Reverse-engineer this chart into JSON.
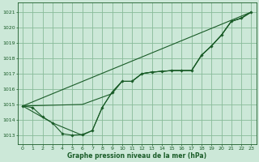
{
  "title": "Graphe pression niveau de la mer (hPa)",
  "background_color": "#cce8d8",
  "grid_color": "#88bb99",
  "line_color": "#1a5c28",
  "text_color": "#1a5c28",
  "xlim": [
    -0.5,
    23.5
  ],
  "ylim": [
    1012.4,
    1021.6
  ],
  "yticks": [
    1013,
    1014,
    1015,
    1016,
    1017,
    1018,
    1019,
    1020,
    1021
  ],
  "xticks": [
    0,
    1,
    2,
    3,
    4,
    5,
    6,
    7,
    8,
    9,
    10,
    11,
    12,
    13,
    14,
    15,
    16,
    17,
    18,
    19,
    20,
    21,
    22,
    23
  ],
  "line1_x": [
    0,
    1,
    2,
    3,
    4,
    5,
    6,
    7,
    8,
    9,
    10,
    11,
    12,
    13,
    14,
    15,
    16,
    17,
    18,
    19,
    20,
    21,
    22,
    23
  ],
  "line1_y": [
    1014.9,
    1014.8,
    1014.2,
    1013.8,
    1013.1,
    1013.0,
    1013.05,
    1013.3,
    1014.8,
    1015.8,
    1016.5,
    1016.5,
    1017.0,
    1017.1,
    1017.15,
    1017.2,
    1017.2,
    1017.2,
    1018.2,
    1018.8,
    1019.5,
    1020.4,
    1020.6,
    1021.0
  ],
  "line2_x": [
    0,
    23
  ],
  "line2_y": [
    1014.9,
    1021.0
  ],
  "line3_x": [
    0,
    6,
    9,
    10,
    11,
    12,
    13,
    14,
    15,
    16,
    17,
    18,
    19,
    20,
    21,
    22,
    23
  ],
  "line3_y": [
    1014.9,
    1015.0,
    1015.7,
    1016.5,
    1016.5,
    1017.0,
    1017.1,
    1017.15,
    1017.2,
    1017.2,
    1017.2,
    1018.2,
    1018.8,
    1019.5,
    1020.4,
    1020.6,
    1021.0
  ],
  "line4_x": [
    0,
    3,
    6,
    7,
    8,
    9,
    10,
    11,
    12,
    13,
    14,
    15,
    16,
    17,
    18,
    19,
    20,
    21,
    22,
    23
  ],
  "line4_y": [
    1014.9,
    1013.8,
    1013.0,
    1013.3,
    1014.8,
    1015.8,
    1016.5,
    1016.5,
    1017.0,
    1017.1,
    1017.15,
    1017.2,
    1017.2,
    1017.2,
    1018.2,
    1018.8,
    1019.5,
    1020.4,
    1020.6,
    1021.0
  ]
}
